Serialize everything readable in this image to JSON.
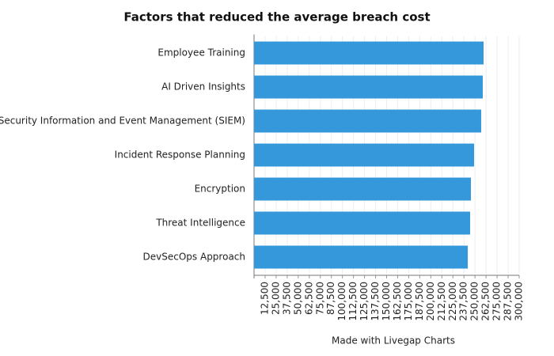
{
  "chart_data": {
    "type": "hbar",
    "title": "Factors that reduced the average breach cost",
    "categories": [
      "Employee Training",
      "AI Driven Insights",
      "Security Information and Event Management (SIEM)",
      "Incident Response Planning",
      "Encryption",
      "Threat Intelligence",
      "DevSecOps Approach"
    ],
    "values": [
      259700,
      258800,
      257000,
      249000,
      245400,
      244500,
      241800
    ],
    "color": "#3498db",
    "xlim": [
      0,
      300000
    ],
    "xticks": [
      {
        "value": 12500,
        "label": "12,500"
      },
      {
        "value": 25000,
        "label": "25,000"
      },
      {
        "value": 37500,
        "label": "37,500"
      },
      {
        "value": 50000,
        "label": "50,000"
      },
      {
        "value": 62500,
        "label": "62,500"
      },
      {
        "value": 75000,
        "label": "75,000"
      },
      {
        "value": 87500,
        "label": "87,500"
      },
      {
        "value": 100000,
        "label": "100,000"
      },
      {
        "value": 112500,
        "label": "112,500"
      },
      {
        "value": 125000,
        "label": "125,000"
      },
      {
        "value": 137500,
        "label": "137,500"
      },
      {
        "value": 150000,
        "label": "150,000"
      },
      {
        "value": 162500,
        "label": "162,500"
      },
      {
        "value": 175000,
        "label": "175,000"
      },
      {
        "value": 187500,
        "label": "187,500"
      },
      {
        "value": 200000,
        "label": "200,000"
      },
      {
        "value": 212500,
        "label": "212,500"
      },
      {
        "value": 225000,
        "label": "225,000"
      },
      {
        "value": 237500,
        "label": "237,500"
      },
      {
        "value": 250000,
        "label": "250,000"
      },
      {
        "value": 262500,
        "label": "262,500"
      },
      {
        "value": 275000,
        "label": "275,000"
      },
      {
        "value": 287500,
        "label": "287,500"
      },
      {
        "value": 300000,
        "label": "300,000"
      }
    ],
    "grid": true,
    "xlabel": "Made with Livegap Charts"
  }
}
